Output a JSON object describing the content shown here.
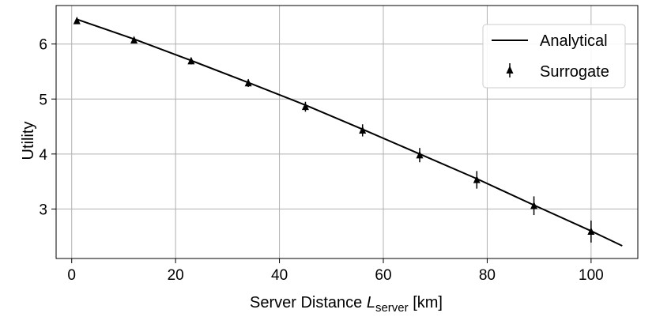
{
  "chart_data": {
    "type": "line",
    "xlabel": {
      "prefix": "Server Distance ",
      "symbol": "L",
      "subscript": "server",
      "suffix": " [km]"
    },
    "ylabel": "Utility",
    "xlim": [
      -3,
      109
    ],
    "ylim": [
      2.1,
      6.7
    ],
    "xticks": [
      0,
      20,
      40,
      60,
      80,
      100
    ],
    "yticks": [
      3,
      4,
      5,
      6
    ],
    "grid": true,
    "legend": {
      "position": "top-right",
      "entries": [
        "Analytical",
        "Surrogate"
      ]
    },
    "series": [
      {
        "name": "Analytical",
        "style": "line",
        "color": "#000000",
        "x": [
          1,
          12,
          23,
          34,
          45,
          56,
          67,
          78,
          89,
          100,
          106
        ],
        "y": [
          6.45,
          6.09,
          5.7,
          5.3,
          4.89,
          4.45,
          4.0,
          3.55,
          3.07,
          2.6,
          2.33
        ]
      },
      {
        "name": "Surrogate",
        "style": "errorbar",
        "marker": "triangle-up",
        "color": "#000000",
        "x": [
          1,
          12,
          23,
          34,
          45,
          56,
          67,
          78,
          89,
          100
        ],
        "y": [
          6.42,
          6.07,
          5.69,
          5.29,
          4.86,
          4.43,
          3.98,
          3.53,
          3.06,
          2.59
        ],
        "err": [
          0.03,
          0.04,
          0.06,
          0.07,
          0.09,
          0.11,
          0.13,
          0.16,
          0.17,
          0.2
        ]
      }
    ]
  }
}
